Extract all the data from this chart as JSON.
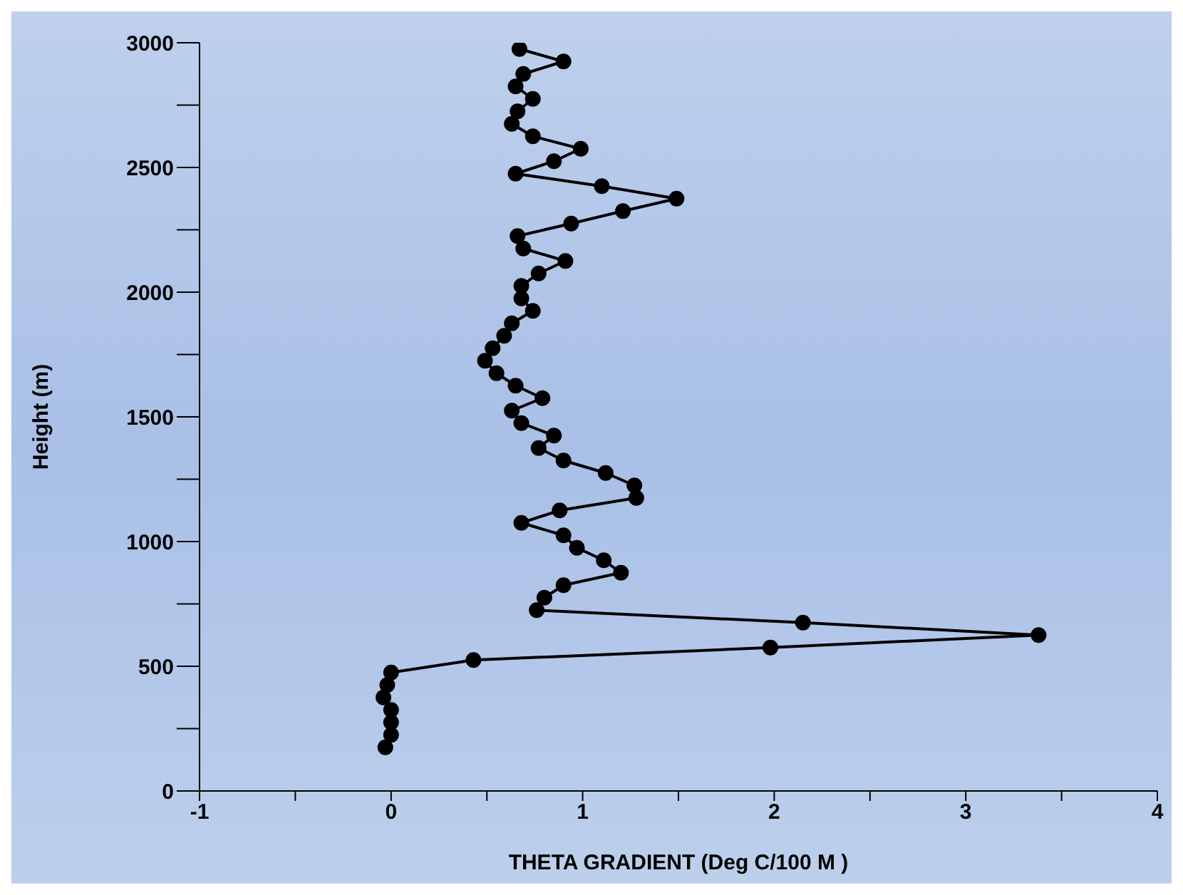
{
  "chart_data": {
    "type": "line",
    "xlabel": "THETA GRADIENT (Deg C/100 M )",
    "ylabel": "Height (m)",
    "xlim": [
      -1,
      4
    ],
    "xticks": [
      -1,
      {
        "value": -0.5,
        "label": null
      },
      0,
      {
        "value": 0.5,
        "label": null
      },
      1,
      {
        "value": 1.5,
        "label": null
      },
      2,
      {
        "value": 2.5,
        "label": null
      },
      3,
      {
        "value": 3.5,
        "label": null
      },
      4
    ],
    "ylim": [
      0,
      3000
    ],
    "yticks": [
      0,
      {
        "value": 250,
        "label": null
      },
      500,
      {
        "value": 750,
        "label": null
      },
      1000,
      {
        "value": 1250,
        "label": null
      },
      1500,
      {
        "value": 1750,
        "label": null
      },
      2000,
      {
        "value": 2250,
        "label": null
      },
      2500,
      {
        "value": 2750,
        "label": null
      },
      3000
    ],
    "grid": false,
    "marker": "circle",
    "line_style": "solid",
    "series": [
      {
        "color": "#000000",
        "x": [
          -0.03,
          0.0,
          0.0,
          0.0,
          -0.04,
          -0.02,
          0.0,
          0.43,
          1.98,
          3.38,
          2.15,
          0.76,
          0.8,
          0.9,
          1.2,
          1.11,
          0.97,
          0.9,
          0.68,
          0.88,
          1.28,
          1.27,
          1.12,
          0.9,
          0.77,
          0.85,
          0.68,
          0.63,
          0.79,
          0.65,
          0.55,
          0.49,
          0.53,
          0.59,
          0.63,
          0.74,
          0.68,
          0.68,
          0.77,
          0.91,
          0.69,
          0.66,
          0.94,
          1.21,
          1.49,
          1.1,
          0.65,
          0.85,
          0.99,
          0.74,
          0.63,
          0.66,
          0.74,
          0.65,
          0.69,
          0.9,
          0.67
        ],
        "values": [
          175,
          225,
          275,
          325,
          375,
          425,
          475,
          525,
          575,
          625,
          675,
          725,
          775,
          825,
          875,
          925,
          975,
          1025,
          1075,
          1125,
          1175,
          1225,
          1275,
          1325,
          1375,
          1425,
          1475,
          1525,
          1575,
          1625,
          1675,
          1725,
          1775,
          1825,
          1875,
          1925,
          1975,
          2025,
          2075,
          2125,
          2175,
          2225,
          2275,
          2325,
          2375,
          2425,
          2475,
          2525,
          2575,
          2625,
          2675,
          2725,
          2775,
          2825,
          2875,
          2925,
          2975
        ]
      }
    ]
  }
}
